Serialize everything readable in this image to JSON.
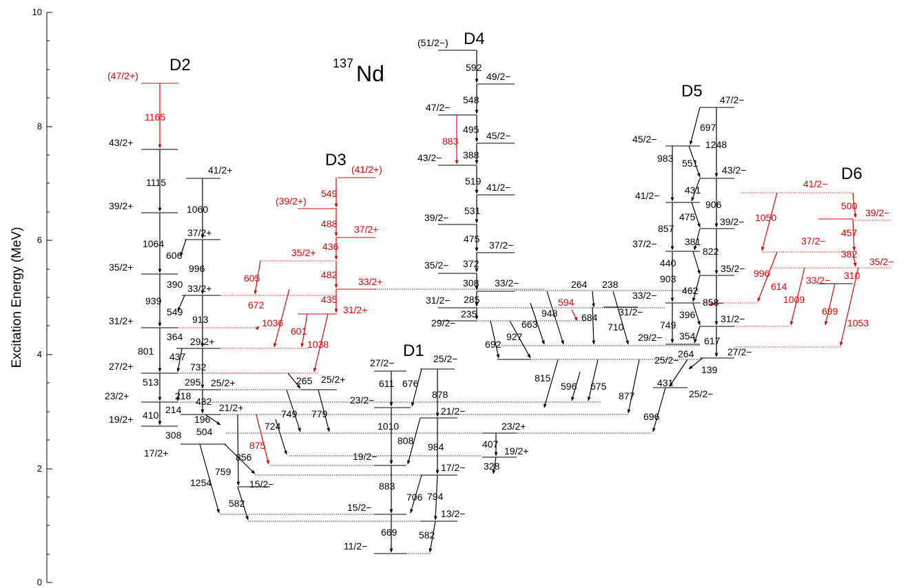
{
  "title": {
    "main": "Nd",
    "mass": "137"
  },
  "axis": {
    "label": "Excitation Energy (MeV)",
    "ticks": [
      "0",
      "2",
      "4",
      "6",
      "8",
      "10"
    ]
  },
  "bands": {
    "d1": "D1",
    "d2": "D2",
    "d3": "D3",
    "d4": "D4",
    "d5": "D5",
    "d6": "D6"
  },
  "colors": {
    "primary": "#000000",
    "new": "#e00000"
  },
  "spins": [
    {
      "id": "s1",
      "text": "(47/2+)",
      "red": true
    },
    {
      "id": "s2",
      "text": "43/2+"
    },
    {
      "id": "s3",
      "text": "41/2+"
    },
    {
      "id": "s4",
      "text": "39/2+"
    },
    {
      "id": "s5",
      "text": "37/2+"
    },
    {
      "id": "s6",
      "text": "35/2+"
    },
    {
      "id": "s7",
      "text": "33/2+"
    },
    {
      "id": "s8",
      "text": "31/2+"
    },
    {
      "id": "s9",
      "text": "29/2+"
    },
    {
      "id": "s10",
      "text": "27/2+"
    },
    {
      "id": "s11",
      "text": "25/2+"
    },
    {
      "id": "s12",
      "text": "23/2+"
    },
    {
      "id": "s13",
      "text": "21/2+"
    },
    {
      "id": "s14",
      "text": "19/2+"
    },
    {
      "id": "s15",
      "text": "17/2+"
    },
    {
      "id": "s16",
      "text": "(41/2+)",
      "red": true
    },
    {
      "id": "s17",
      "text": "(39/2+)",
      "red": true
    },
    {
      "id": "s18",
      "text": "37/2+",
      "red": true
    },
    {
      "id": "s19",
      "text": "35/2+",
      "red": true
    },
    {
      "id": "s20",
      "text": "33/2+",
      "red": true
    },
    {
      "id": "s21",
      "text": "31/2+",
      "red": true
    },
    {
      "id": "s22",
      "text": "25/2+"
    },
    {
      "id": "s23",
      "text": "(51/2−)"
    },
    {
      "id": "s24",
      "text": "49/2−"
    },
    {
      "id": "s25",
      "text": "47/2−"
    },
    {
      "id": "s26",
      "text": "45/2−"
    },
    {
      "id": "s27",
      "text": "43/2−"
    },
    {
      "id": "s28",
      "text": "41/2−"
    },
    {
      "id": "s29",
      "text": "39/2−"
    },
    {
      "id": "s30",
      "text": "37/2−"
    },
    {
      "id": "s31",
      "text": "35/2−"
    },
    {
      "id": "s32",
      "text": "33/2−"
    },
    {
      "id": "s33",
      "text": "31/2−"
    },
    {
      "id": "s34",
      "text": "29/2−"
    },
    {
      "id": "s35",
      "text": "27/2−"
    },
    {
      "id": "s36",
      "text": "25/2−"
    },
    {
      "id": "s37",
      "text": "23/2−"
    },
    {
      "id": "s38",
      "text": "21/2−"
    },
    {
      "id": "s39",
      "text": "23/2+"
    },
    {
      "id": "s40",
      "text": "19/2+"
    },
    {
      "id": "s41",
      "text": "19/2−"
    },
    {
      "id": "s42",
      "text": "17/2−"
    },
    {
      "id": "s43",
      "text": "15/2−"
    },
    {
      "id": "s44",
      "text": "13/2−"
    },
    {
      "id": "s45",
      "text": "11/2−"
    },
    {
      "id": "s46",
      "text": "15/2−"
    },
    {
      "id": "s47",
      "text": "47/2−"
    },
    {
      "id": "s48",
      "text": "45/2−"
    },
    {
      "id": "s49",
      "text": "43/2−"
    },
    {
      "id": "s50",
      "text": "41/2−"
    },
    {
      "id": "s51",
      "text": "39/2−"
    },
    {
      "id": "s52",
      "text": "37/2−"
    },
    {
      "id": "s53",
      "text": "35/2−"
    },
    {
      "id": "s54",
      "text": "33/2−"
    },
    {
      "id": "s55",
      "text": "31/2−"
    },
    {
      "id": "s56",
      "text": "29/2−"
    },
    {
      "id": "s57",
      "text": "27/2−"
    },
    {
      "id": "s58",
      "text": "25/2−"
    },
    {
      "id": "s59",
      "text": "25/2−"
    },
    {
      "id": "s60",
      "text": "31/2−"
    },
    {
      "id": "s61",
      "text": "41/2−",
      "red": true
    },
    {
      "id": "s62",
      "text": "39/2−",
      "red": true
    },
    {
      "id": "s63",
      "text": "37/2−",
      "red": true
    },
    {
      "id": "s64",
      "text": "35/2−",
      "red": true
    },
    {
      "id": "s65",
      "text": "33/2−",
      "red": true
    }
  ],
  "energies": [
    {
      "id": "e1",
      "text": "1165",
      "red": true
    },
    {
      "id": "e2",
      "text": "1115"
    },
    {
      "id": "e3",
      "text": "1060"
    },
    {
      "id": "e4",
      "text": "1064"
    },
    {
      "id": "e5",
      "text": "606"
    },
    {
      "id": "e6",
      "text": "996"
    },
    {
      "id": "e7",
      "text": "390"
    },
    {
      "id": "e8",
      "text": "939"
    },
    {
      "id": "e9",
      "text": "549"
    },
    {
      "id": "e10",
      "text": "913"
    },
    {
      "id": "e11",
      "text": "364"
    },
    {
      "id": "e12",
      "text": "801"
    },
    {
      "id": "e13",
      "text": "437"
    },
    {
      "id": "e14",
      "text": "732"
    },
    {
      "id": "e15",
      "text": "513"
    },
    {
      "id": "e16",
      "text": "295"
    },
    {
      "id": "e17",
      "text": "218"
    },
    {
      "id": "e18",
      "text": "432"
    },
    {
      "id": "e19",
      "text": "214"
    },
    {
      "id": "e20",
      "text": "410"
    },
    {
      "id": "e21",
      "text": "196"
    },
    {
      "id": "e22",
      "text": "504"
    },
    {
      "id": "e23",
      "text": "308"
    },
    {
      "id": "e24",
      "text": "856"
    },
    {
      "id": "e25",
      "text": "759"
    },
    {
      "id": "e26",
      "text": "1254"
    },
    {
      "id": "e27",
      "text": "582"
    },
    {
      "id": "e28",
      "text": "549",
      "red": true
    },
    {
      "id": "e29",
      "text": "488",
      "red": true
    },
    {
      "id": "e30",
      "text": "436",
      "red": true
    },
    {
      "id": "e31",
      "text": "605",
      "red": true
    },
    {
      "id": "e32",
      "text": "482",
      "red": true
    },
    {
      "id": "e33",
      "text": "672",
      "red": true
    },
    {
      "id": "e34",
      "text": "435",
      "red": true
    },
    {
      "id": "e35",
      "text": "1036",
      "red": true
    },
    {
      "id": "e36",
      "text": "601",
      "red": true
    },
    {
      "id": "e37",
      "text": "1038",
      "red": true
    },
    {
      "id": "e38",
      "text": "875",
      "red": true
    },
    {
      "id": "e39",
      "text": "724"
    },
    {
      "id": "e40",
      "text": "265"
    },
    {
      "id": "e41",
      "text": "749"
    },
    {
      "id": "e42",
      "text": "779"
    },
    {
      "id": "e43",
      "text": "592"
    },
    {
      "id": "e44",
      "text": "548"
    },
    {
      "id": "e45",
      "text": "883",
      "red": true
    },
    {
      "id": "e46",
      "text": "495"
    },
    {
      "id": "e47",
      "text": "388"
    },
    {
      "id": "e48",
      "text": "519"
    },
    {
      "id": "e49",
      "text": "531"
    },
    {
      "id": "e50",
      "text": "475"
    },
    {
      "id": "e51",
      "text": "372"
    },
    {
      "id": "e52",
      "text": "308"
    },
    {
      "id": "e53",
      "text": "285"
    },
    {
      "id": "e54",
      "text": "235"
    },
    {
      "id": "e55",
      "text": "692"
    },
    {
      "id": "e56",
      "text": "927"
    },
    {
      "id": "e57",
      "text": "663"
    },
    {
      "id": "e58",
      "text": "948"
    },
    {
      "id": "e59",
      "text": "264"
    },
    {
      "id": "e60",
      "text": "594",
      "red": true
    },
    {
      "id": "e61",
      "text": "684"
    },
    {
      "id": "e62",
      "text": "238"
    },
    {
      "id": "e63",
      "text": "710"
    },
    {
      "id": "e64",
      "text": "815"
    },
    {
      "id": "e65",
      "text": "596"
    },
    {
      "id": "e66",
      "text": "675"
    },
    {
      "id": "e67",
      "text": "877"
    },
    {
      "id": "e68",
      "text": "611"
    },
    {
      "id": "e69",
      "text": "676"
    },
    {
      "id": "e70",
      "text": "878"
    },
    {
      "id": "e71",
      "text": "1010"
    },
    {
      "id": "e72",
      "text": "808"
    },
    {
      "id": "e73",
      "text": "984"
    },
    {
      "id": "e74",
      "text": "407"
    },
    {
      "id": "e75",
      "text": "328"
    },
    {
      "id": "e76",
      "text": "883"
    },
    {
      "id": "e77",
      "text": "706"
    },
    {
      "id": "e78",
      "text": "794"
    },
    {
      "id": "e79",
      "text": "669"
    },
    {
      "id": "e80",
      "text": "582"
    },
    {
      "id": "e81",
      "text": "697"
    },
    {
      "id": "e82",
      "text": "1248"
    },
    {
      "id": "e83",
      "text": "983"
    },
    {
      "id": "e84",
      "text": "551"
    },
    {
      "id": "e85",
      "text": "431"
    },
    {
      "id": "e86",
      "text": "906"
    },
    {
      "id": "e87",
      "text": "475"
    },
    {
      "id": "e88",
      "text": "857"
    },
    {
      "id": "e89",
      "text": "381"
    },
    {
      "id": "e90",
      "text": "822"
    },
    {
      "id": "e91",
      "text": "440"
    },
    {
      "id": "e92",
      "text": "903"
    },
    {
      "id": "e93",
      "text": "462"
    },
    {
      "id": "e94",
      "text": "858"
    },
    {
      "id": "e95",
      "text": "396"
    },
    {
      "id": "e96",
      "text": "749"
    },
    {
      "id": "e97",
      "text": "354"
    },
    {
      "id": "e98",
      "text": "617"
    },
    {
      "id": "e99",
      "text": "264"
    },
    {
      "id": "e100",
      "text": "139"
    },
    {
      "id": "e101",
      "text": "431"
    },
    {
      "id": "e102",
      "text": "696"
    },
    {
      "id": "e103",
      "text": "1050",
      "red": true
    },
    {
      "id": "e104",
      "text": "500",
      "red": true
    },
    {
      "id": "e105",
      "text": "457",
      "red": true
    },
    {
      "id": "e106",
      "text": "996",
      "red": true
    },
    {
      "id": "e107",
      "text": "382",
      "red": true
    },
    {
      "id": "e108",
      "text": "614",
      "red": true
    },
    {
      "id": "e109",
      "text": "310",
      "red": true
    },
    {
      "id": "e110",
      "text": "1009",
      "red": true
    },
    {
      "id": "e111",
      "text": "699",
      "red": true
    },
    {
      "id": "e112",
      "text": "1053",
      "red": true
    }
  ]
}
